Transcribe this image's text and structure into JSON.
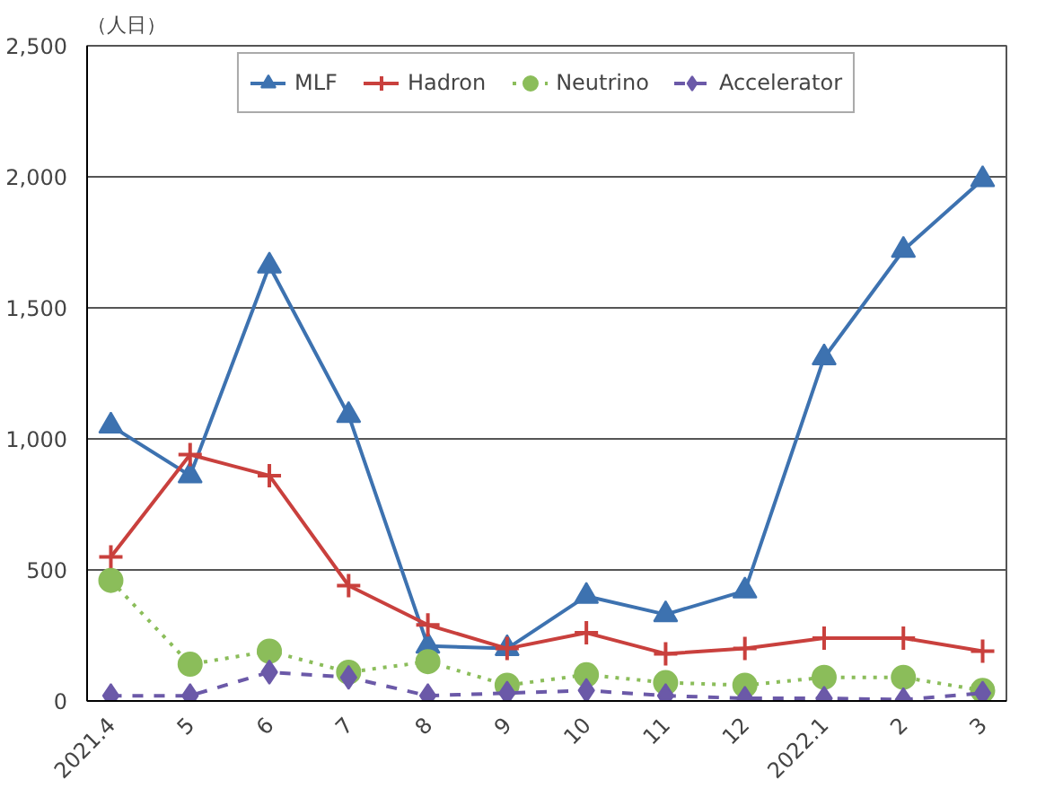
{
  "chart_data": {
    "type": "line",
    "ylabel": "（人日）",
    "categories": [
      "2021.4",
      "5",
      "6",
      "7",
      "8",
      "9",
      "10",
      "11",
      "12",
      "2022.1",
      "2",
      "3"
    ],
    "series": [
      {
        "name": "MLF",
        "color": "#3d72b0",
        "marker": "triangle",
        "line_style": "solid",
        "values": [
          1050,
          860,
          1660,
          1090,
          210,
          200,
          400,
          330,
          420,
          1310,
          1720,
          1990
        ]
      },
      {
        "name": "Hadron",
        "color": "#c9403d",
        "marker": "cross",
        "line_style": "solid",
        "values": [
          550,
          940,
          860,
          440,
          290,
          200,
          260,
          180,
          200,
          240,
          240,
          190
        ]
      },
      {
        "name": "Neutrino",
        "color": "#8bbd5a",
        "marker": "circle",
        "line_style": "dotted",
        "values": [
          460,
          140,
          190,
          110,
          150,
          60,
          100,
          70,
          60,
          90,
          90,
          40
        ]
      },
      {
        "name": "Accelerator",
        "color": "#6b59a8",
        "marker": "diamond",
        "line_style": "dashed",
        "values": [
          20,
          20,
          110,
          90,
          20,
          30,
          40,
          20,
          10,
          10,
          5,
          30
        ]
      }
    ],
    "ylim": [
      0,
      2500
    ],
    "yticks": [
      {
        "value": 0,
        "label": "0"
      },
      {
        "value": 500,
        "label": "500"
      },
      {
        "value": 1000,
        "label": "1,000"
      },
      {
        "value": 1500,
        "label": "1,500"
      },
      {
        "value": 2000,
        "label": "2,000"
      },
      {
        "value": 2500,
        "label": "2,500"
      }
    ],
    "grid": "y",
    "legend": "top"
  }
}
